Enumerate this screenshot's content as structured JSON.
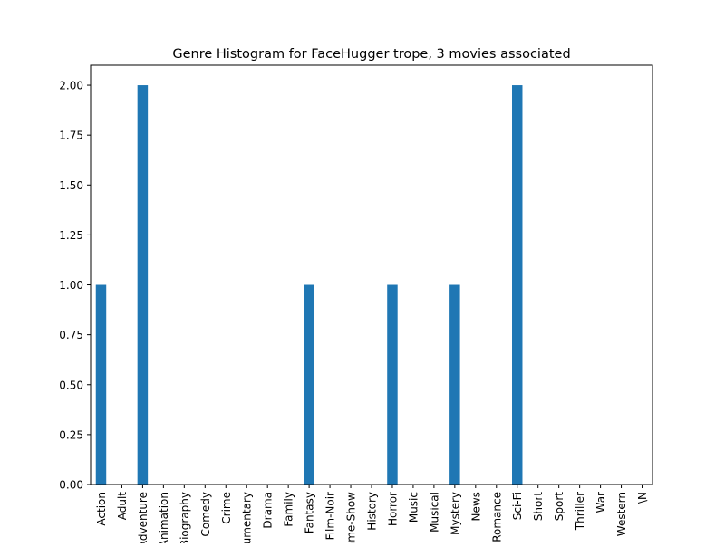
{
  "chart_data": {
    "type": "bar",
    "title": "Genre Histogram for FaceHugger trope, 3 movies associated",
    "xlabel": "",
    "ylabel": "",
    "categories": [
      "Action",
      "Adult",
      "Adventure",
      "Animation",
      "Biography",
      "Comedy",
      "Crime",
      "Documentary",
      "Drama",
      "Family",
      "Fantasy",
      "Film-Noir",
      "Game-Show",
      "History",
      "Horror",
      "Music",
      "Musical",
      "Mystery",
      "News",
      "Romance",
      "Sci-Fi",
      "Short",
      "Sport",
      "Thriller",
      "War",
      "Western",
      "\\N"
    ],
    "values": [
      1,
      0,
      2,
      0,
      0,
      0,
      0,
      0,
      0,
      0,
      1,
      0,
      0,
      0,
      1,
      0,
      0,
      1,
      0,
      0,
      2,
      0,
      0,
      0,
      0,
      0,
      0
    ],
    "ylim": [
      0,
      2.1
    ],
    "yticks": [
      "0.00",
      "0.25",
      "0.50",
      "0.75",
      "1.00",
      "1.25",
      "1.50",
      "1.75",
      "2.00"
    ],
    "grid": false,
    "bar_color": "#1f77b4"
  }
}
